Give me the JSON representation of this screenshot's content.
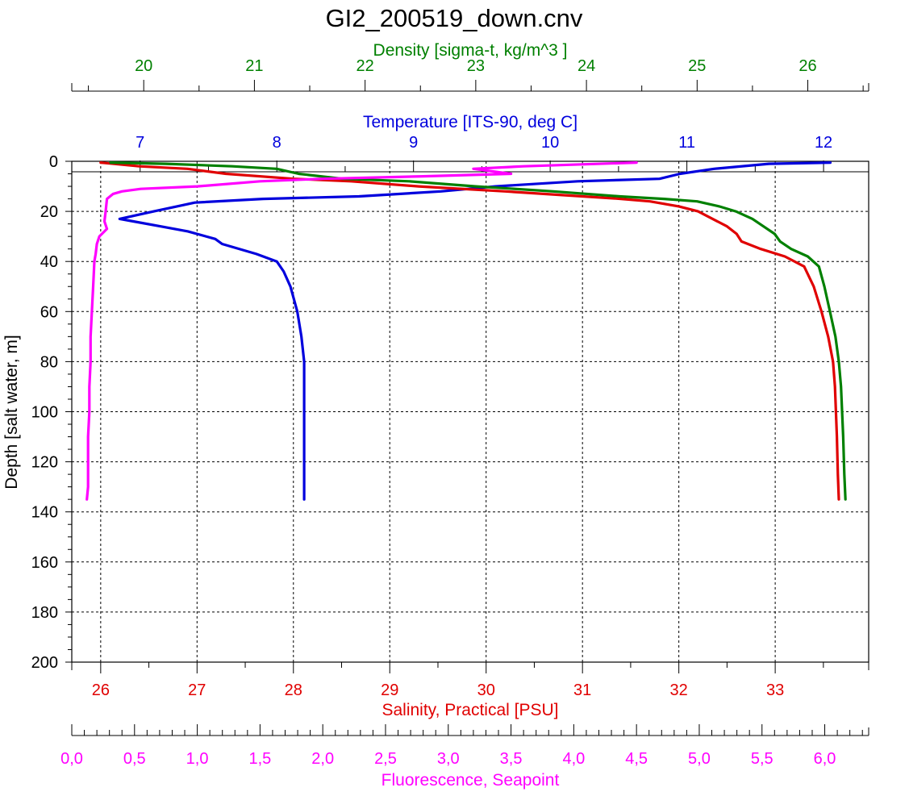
{
  "chart_data": {
    "type": "line",
    "title": "GI2_200519_down.cnv",
    "y_axis": {
      "label": "Depth [salt water, m]",
      "range": [
        0,
        200
      ],
      "ticks": [
        0,
        20,
        40,
        60,
        80,
        100,
        120,
        140,
        160,
        180,
        200
      ],
      "tick_labels": [
        "0",
        "20",
        "40",
        "60",
        "80",
        "100",
        "120",
        "140",
        "160",
        "180",
        "200"
      ],
      "inverted": true
    },
    "grid": true,
    "x_axes": [
      {
        "id": "density",
        "label": "Density [sigma-t, kg/m^3 ]",
        "position": "top",
        "color": "#008000",
        "range": [
          19.35,
          26.55
        ],
        "ticks": [
          20,
          21,
          22,
          23,
          24,
          25,
          26
        ],
        "tick_labels": [
          "20",
          "21",
          "22",
          "23",
          "24",
          "25",
          "26"
        ],
        "minor_step": 0.5
      },
      {
        "id": "temperature",
        "label": "Temperature [ITS-90, deg C]",
        "position": "top",
        "color": "#0000dd",
        "range": [
          6.5,
          12.33
        ],
        "ticks": [
          7,
          8,
          9,
          10,
          11,
          12
        ],
        "tick_labels": [
          "7",
          "8",
          "9",
          "10",
          "11",
          "12"
        ],
        "minor_step": 0.5
      },
      {
        "id": "salinity",
        "label": "Salinity, Practical [PSU]",
        "position": "bottom",
        "color": "#e00000",
        "range": [
          25.7,
          33.97
        ],
        "ticks": [
          26,
          27,
          28,
          29,
          30,
          31,
          32,
          33
        ],
        "tick_labels": [
          "26",
          "27",
          "28",
          "29",
          "30",
          "31",
          "32",
          "33"
        ],
        "minor_step": 0.5
      },
      {
        "id": "fluorescence",
        "label": "Fluorescence, Seapoint",
        "position": "bottom",
        "color": "#ff00ff",
        "range": [
          0,
          6.35
        ],
        "ticks": [
          0,
          0.5,
          1,
          1.5,
          2,
          2.5,
          3,
          3.5,
          4,
          4.5,
          5,
          5.5,
          6
        ],
        "tick_labels": [
          "0,0",
          "0,5",
          "1,0",
          "1,5",
          "2,0",
          "2,5",
          "3,0",
          "3,5",
          "4,0",
          "4,5",
          "5,0",
          "5,5",
          "6,0"
        ],
        "minor_step": 0.1
      }
    ],
    "series": [
      {
        "axis": "temperature",
        "color": "#0000dd",
        "points": [
          [
            12.05,
            0.5
          ],
          [
            11.6,
            1
          ],
          [
            11.2,
            3
          ],
          [
            10.95,
            5
          ],
          [
            10.8,
            7
          ],
          [
            10.2,
            8
          ],
          [
            9.6,
            10
          ],
          [
            9.2,
            12
          ],
          [
            8.6,
            14
          ],
          [
            7.9,
            15
          ],
          [
            7.4,
            16.5
          ],
          [
            7.1,
            20
          ],
          [
            6.85,
            23
          ],
          [
            6.95,
            24
          ],
          [
            7.15,
            26
          ],
          [
            7.35,
            28
          ],
          [
            7.55,
            31
          ],
          [
            7.6,
            33
          ],
          [
            7.85,
            37
          ],
          [
            8.0,
            40
          ],
          [
            8.05,
            44
          ],
          [
            8.1,
            50
          ],
          [
            8.15,
            60
          ],
          [
            8.18,
            70
          ],
          [
            8.2,
            80
          ],
          [
            8.2,
            90
          ],
          [
            8.2,
            110
          ],
          [
            8.2,
            125
          ],
          [
            8.2,
            135
          ]
        ]
      },
      {
        "axis": "salinity",
        "color": "#e00000",
        "points": [
          [
            26.0,
            0.5
          ],
          [
            26.4,
            2
          ],
          [
            26.9,
            3
          ],
          [
            27.3,
            5
          ],
          [
            28.0,
            7
          ],
          [
            28.6,
            8
          ],
          [
            29.3,
            10
          ],
          [
            30.2,
            12
          ],
          [
            31.0,
            14
          ],
          [
            31.4,
            15
          ],
          [
            31.7,
            16
          ],
          [
            32.0,
            18
          ],
          [
            32.2,
            20
          ],
          [
            32.35,
            23
          ],
          [
            32.5,
            26
          ],
          [
            32.6,
            29
          ],
          [
            32.65,
            32
          ],
          [
            32.85,
            35
          ],
          [
            33.1,
            38
          ],
          [
            33.3,
            42
          ],
          [
            33.4,
            50
          ],
          [
            33.48,
            60
          ],
          [
            33.55,
            70
          ],
          [
            33.6,
            80
          ],
          [
            33.62,
            90
          ],
          [
            33.64,
            110
          ],
          [
            33.65,
            125
          ],
          [
            33.66,
            135
          ]
        ]
      },
      {
        "axis": "density",
        "color": "#008000",
        "points": [
          [
            19.7,
            0.5
          ],
          [
            20.2,
            1
          ],
          [
            20.8,
            2
          ],
          [
            21.2,
            3
          ],
          [
            21.4,
            5
          ],
          [
            21.8,
            7
          ],
          [
            22.4,
            8
          ],
          [
            23.0,
            10
          ],
          [
            23.7,
            12
          ],
          [
            24.3,
            14
          ],
          [
            24.7,
            15
          ],
          [
            25.0,
            16
          ],
          [
            25.2,
            18
          ],
          [
            25.35,
            20
          ],
          [
            25.5,
            23
          ],
          [
            25.6,
            26
          ],
          [
            25.7,
            29
          ],
          [
            25.75,
            32
          ],
          [
            25.85,
            35
          ],
          [
            26.0,
            38
          ],
          [
            26.1,
            42
          ],
          [
            26.15,
            50
          ],
          [
            26.2,
            60
          ],
          [
            26.25,
            70
          ],
          [
            26.28,
            80
          ],
          [
            26.3,
            90
          ],
          [
            26.32,
            110
          ],
          [
            26.33,
            125
          ],
          [
            26.34,
            135
          ]
        ]
      },
      {
        "axis": "fluorescence",
        "color": "#ff00ff",
        "points": [
          [
            4.5,
            0.5
          ],
          [
            3.6,
            2
          ],
          [
            3.2,
            3
          ],
          [
            3.5,
            5
          ],
          [
            2.8,
            6
          ],
          [
            2.0,
            7
          ],
          [
            1.5,
            8
          ],
          [
            1.0,
            10
          ],
          [
            0.55,
            11
          ],
          [
            0.4,
            12
          ],
          [
            0.33,
            13
          ],
          [
            0.28,
            15
          ],
          [
            0.27,
            20
          ],
          [
            0.26,
            24
          ],
          [
            0.28,
            27
          ],
          [
            0.22,
            30
          ],
          [
            0.2,
            33
          ],
          [
            0.19,
            37
          ],
          [
            0.18,
            40
          ],
          [
            0.17,
            50
          ],
          [
            0.16,
            60
          ],
          [
            0.15,
            70
          ],
          [
            0.15,
            80
          ],
          [
            0.14,
            90
          ],
          [
            0.14,
            100
          ],
          [
            0.13,
            110
          ],
          [
            0.13,
            120
          ],
          [
            0.13,
            130
          ],
          [
            0.12,
            135
          ]
        ]
      }
    ]
  }
}
